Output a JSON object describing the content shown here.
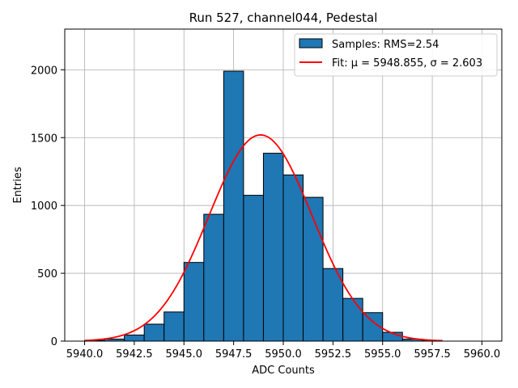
{
  "chart_data": {
    "type": "bar",
    "title": "Run 527, channel044, Pedestal",
    "xlabel": "ADC Counts",
    "ylabel": "Entries",
    "xlim": [
      5939.0,
      5961.0
    ],
    "ylim": [
      0,
      2300
    ],
    "grid": true,
    "legend_position": "top-right",
    "xticks": [
      5940.0,
      5942.5,
      5945.0,
      5947.5,
      5950.0,
      5952.5,
      5955.0,
      5957.5,
      5960.0
    ],
    "xtick_labels": [
      "5940.0",
      "5942.5",
      "5945.0",
      "5947.5",
      "5950.0",
      "5952.5",
      "5955.0",
      "5957.5",
      "5960.0"
    ],
    "yticks": [
      0,
      500,
      1000,
      1500,
      2000
    ],
    "ytick_labels": [
      "0",
      "500",
      "1000",
      "1500",
      "2000"
    ],
    "bin_edges": [
      5940,
      5941,
      5942,
      5943,
      5944,
      5945,
      5946,
      5947,
      5948,
      5949,
      5950,
      5951,
      5952,
      5953,
      5954,
      5955,
      5956,
      5957,
      5958
    ],
    "series": [
      {
        "name": "Samples: RMS=2.54",
        "kind": "histogram",
        "color": "#1f77b4",
        "edgecolor": "#000000",
        "values": [
          5,
          15,
          45,
          125,
          215,
          580,
          935,
          1990,
          1075,
          1385,
          1225,
          1060,
          535,
          315,
          210,
          65,
          15,
          5
        ]
      },
      {
        "name": "Fit: μ = 5948.855, σ = 2.603",
        "kind": "gaussian-fit",
        "color": "#ff0000",
        "mu": 5948.855,
        "sigma": 2.603,
        "amplitude": 1520,
        "x_range": [
          5940,
          5958
        ]
      }
    ]
  }
}
